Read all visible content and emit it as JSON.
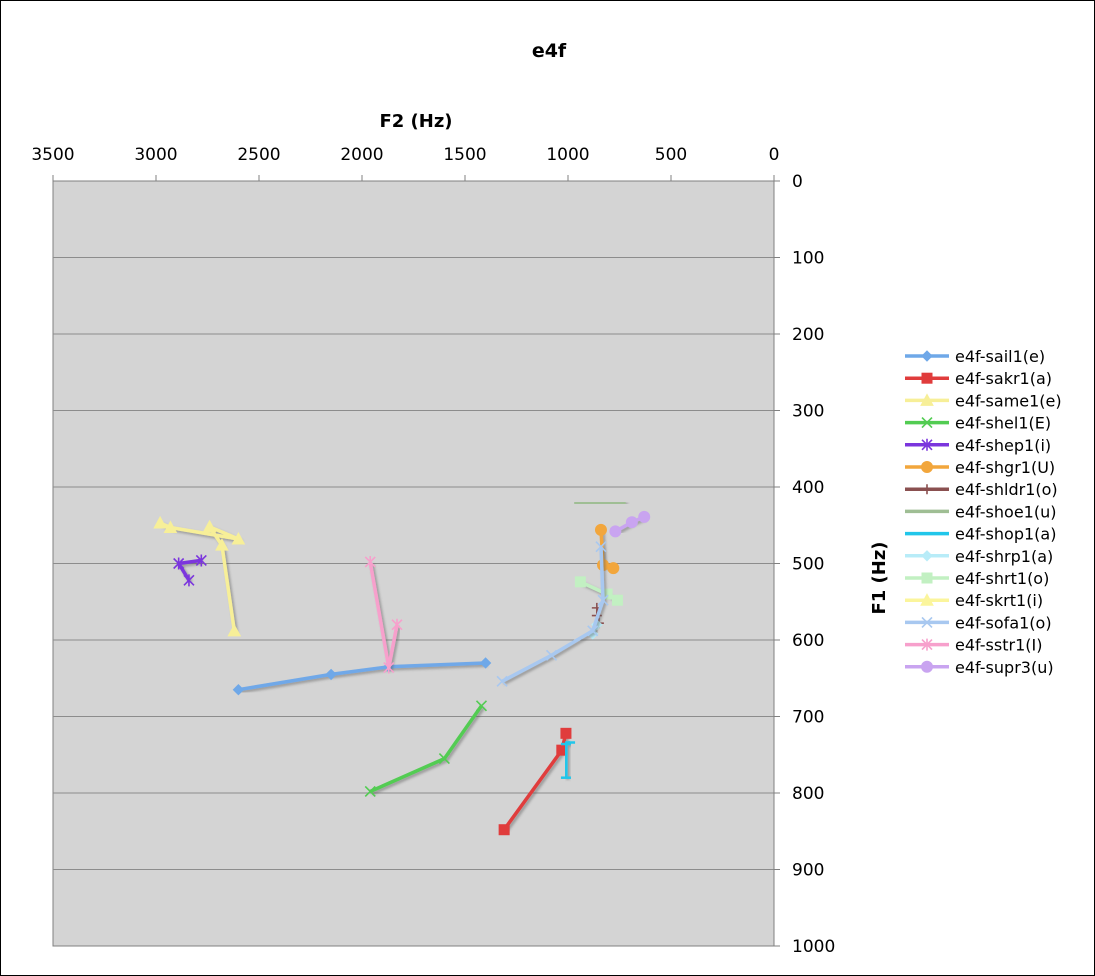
{
  "chart_data": {
    "type": "line",
    "title": "e4f",
    "xlabel": "F2 (Hz)",
    "ylabel": "F1 (Hz)",
    "xlim": [
      3500,
      0
    ],
    "ylim": [
      1000,
      0
    ],
    "x_reversed": true,
    "y_reversed": true,
    "x_axis_position": "top",
    "y_axis_position": "right",
    "xticks": [
      "3500",
      "3000",
      "2500",
      "2000",
      "1500",
      "1000",
      "500",
      "0"
    ],
    "yticks": [
      "0",
      "100",
      "200",
      "300",
      "400",
      "500",
      "600",
      "700",
      "800",
      "900",
      "1000"
    ],
    "grid": true,
    "plot_background": "#d4d4d4",
    "legend_position": "right",
    "series": [
      {
        "name": "e4f-sail1(e)",
        "color": "#6fa8e8",
        "marker": "diamond",
        "points": [
          [
            2600,
            665
          ],
          [
            2150,
            645
          ],
          [
            1870,
            635
          ],
          [
            1400,
            630
          ]
        ]
      },
      {
        "name": "e4f-sakr1(a)",
        "color": "#e03c3c",
        "marker": "square",
        "points": [
          [
            1310,
            848
          ],
          [
            1030,
            744
          ],
          [
            1010,
            722
          ]
        ]
      },
      {
        "name": "e4f-same1(e)",
        "color": "#f7ef98",
        "marker": "triangle",
        "points": [
          [
            2620,
            588
          ],
          [
            2680,
            476
          ],
          [
            2740,
            452
          ],
          [
            2600,
            468
          ],
          [
            2930,
            453
          ],
          [
            2980,
            447
          ]
        ]
      },
      {
        "name": "e4f-shel1(E)",
        "color": "#52cc52",
        "marker": "x",
        "points": [
          [
            1960,
            798
          ],
          [
            1600,
            755
          ],
          [
            1420,
            686
          ]
        ]
      },
      {
        "name": "e4f-shep1(i)",
        "color": "#7b35dd",
        "marker": "star",
        "points": [
          [
            2840,
            522
          ],
          [
            2890,
            500
          ],
          [
            2780,
            496
          ]
        ]
      },
      {
        "name": "e4f-shgr1(U)",
        "color": "#f2a63c",
        "marker": "circle",
        "points": [
          [
            840,
            456
          ],
          [
            830,
            502
          ],
          [
            780,
            506
          ]
        ]
      },
      {
        "name": "e4f-shldr1(o)",
        "color": "#8a5050",
        "marker": "plus",
        "points": [
          [
            850,
            578
          ],
          [
            860,
            568
          ],
          [
            860,
            558
          ]
        ]
      },
      {
        "name": "e4f-shoe1(u)",
        "color": "#9fbe94",
        "marker": "none",
        "points": [
          [
            970,
            422
          ],
          [
            830,
            421
          ],
          [
            720,
            420
          ]
        ]
      },
      {
        "name": "e4f-shop1(a)",
        "color": "#21c6ea",
        "marker": "dash",
        "points": [
          [
            1010,
            780
          ],
          [
            1010,
            736
          ],
          [
            990,
            734
          ]
        ]
      },
      {
        "name": "e4f-shrp1(a)",
        "color": "#b8ecf8",
        "marker": "diamond",
        "points": [
          [
            880,
            592
          ],
          [
            860,
            580
          ]
        ]
      },
      {
        "name": "e4f-shrt1(o)",
        "color": "#c2f0c2",
        "marker": "square",
        "points": [
          [
            940,
            524
          ],
          [
            810,
            540
          ],
          [
            760,
            548
          ]
        ]
      },
      {
        "name": "e4f-skrt1(i)",
        "color": "#fbf59c",
        "marker": "triangle",
        "points": []
      },
      {
        "name": "e4f-sofa1(o)",
        "color": "#a8c8f0",
        "marker": "x",
        "points": [
          [
            1320,
            654
          ],
          [
            1080,
            620
          ],
          [
            880,
            588
          ],
          [
            830,
            548
          ],
          [
            840,
            478
          ]
        ]
      },
      {
        "name": "e4f-sstr1(I)",
        "color": "#f7a0cc",
        "marker": "star",
        "points": [
          [
            1960,
            498
          ],
          [
            1870,
            636
          ],
          [
            1830,
            580
          ]
        ]
      },
      {
        "name": "e4f-supr3(u)",
        "color": "#c9a4f0",
        "marker": "circle",
        "points": [
          [
            770,
            458
          ],
          [
            690,
            446
          ],
          [
            630,
            439
          ]
        ]
      }
    ]
  }
}
